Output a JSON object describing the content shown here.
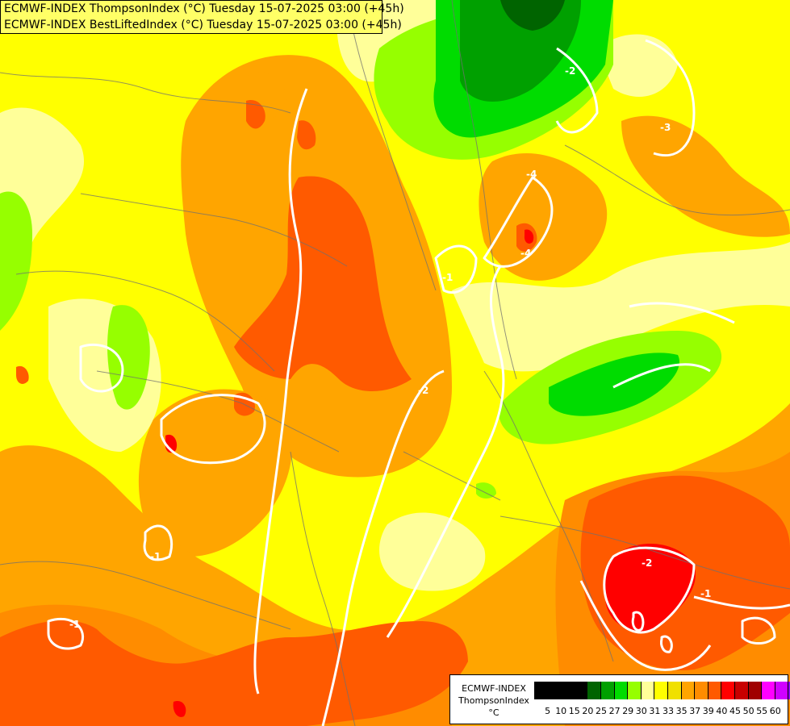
{
  "header": {
    "line1": "ECMWF-INDEX ThompsonIndex (°C) Tuesday 15-07-2025 03:00 (+45h)",
    "line2": "ECMWF-INDEX BestLiftedIndex (°C) Tuesday 15-07-2025 03:00 (+45h)"
  },
  "legend": {
    "title": "ECMWF-INDEX",
    "subtitle": "ThompsonIndex",
    "unit": "°C",
    "colors": [
      "#000000",
      "#000000",
      "#000000",
      "#000000",
      "#006400",
      "#00a000",
      "#00dc00",
      "#96ff00",
      "#ffff99",
      "#ffff00",
      "#f0e000",
      "#ffa500",
      "#ff8c00",
      "#ff5a00",
      "#ff0000",
      "#c80000",
      "#a00000",
      "#ff00ff",
      "#d000ff",
      "#9000ff",
      "#0000ff"
    ],
    "ticks": [
      "5",
      "10",
      "15",
      "20",
      "25",
      "27",
      "29",
      "30",
      "31",
      "33",
      "35",
      "37",
      "39",
      "40",
      "45",
      "50",
      "55",
      "60"
    ]
  },
  "contour_labels": [
    "-2",
    "-2",
    "-2",
    "-3",
    "-4",
    "-4",
    "-1",
    "-1",
    "-1",
    "-1"
  ]
}
